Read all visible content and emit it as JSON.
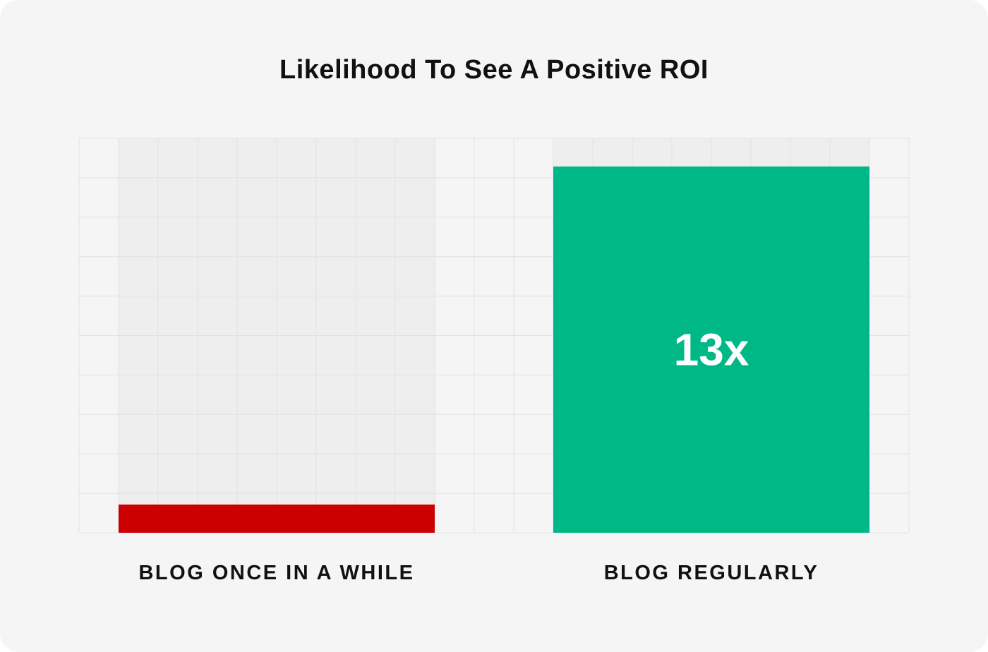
{
  "chart_data": {
    "type": "bar",
    "title": "Likelihood To See A Positive ROI",
    "categories": [
      "BLOG ONCE IN A WHILE",
      "BLOG REGULARLY"
    ],
    "values": [
      1,
      13
    ],
    "data_labels": [
      "",
      "13x"
    ],
    "ylim": [
      0,
      14
    ],
    "grid": true,
    "xlabel": "",
    "ylabel": "",
    "colors": [
      "#cc0000",
      "#00b886"
    ],
    "track_color": "#eeeeee",
    "grid_color": "#e2e2e2"
  }
}
